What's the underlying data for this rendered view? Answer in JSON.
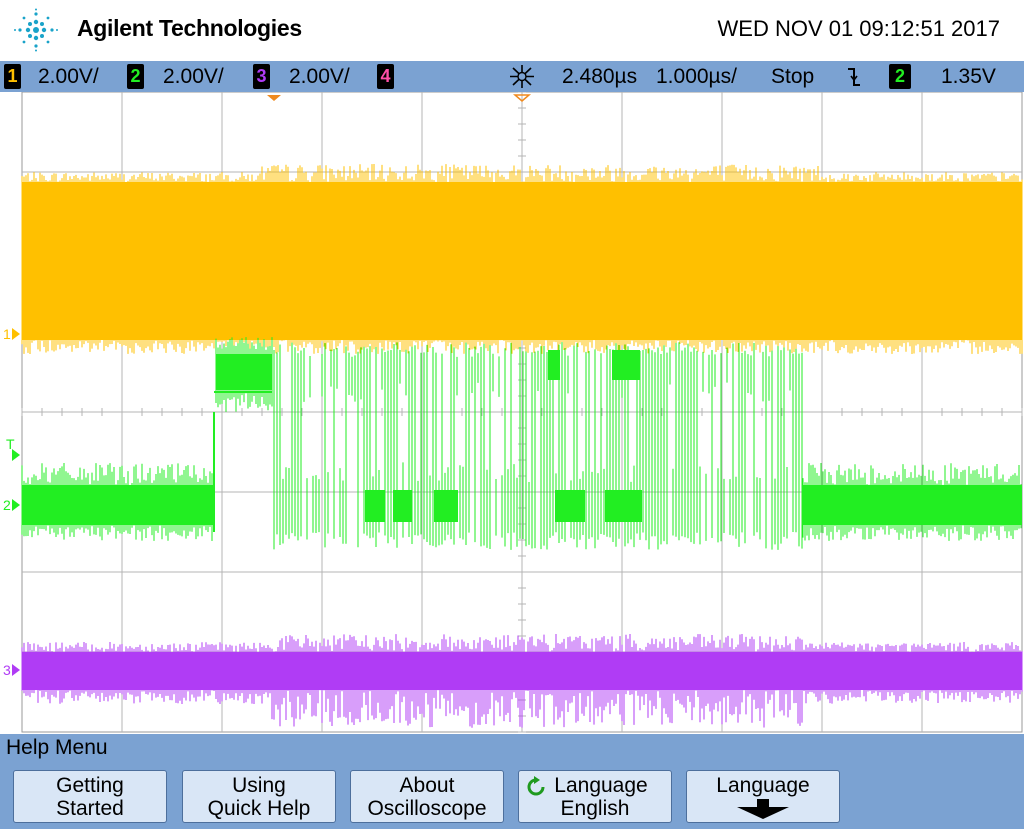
{
  "header": {
    "brand": "Agilent Technologies",
    "datetime": "WED NOV 01 09:12:51 2017",
    "logo_icon": "agilent-spark-icon"
  },
  "status": {
    "channels": [
      {
        "num": "1",
        "scale": "2.00V/",
        "color": "#ffc000"
      },
      {
        "num": "2",
        "scale": "2.00V/",
        "color": "#22ee22"
      },
      {
        "num": "3",
        "scale": "2.00V/",
        "color": "#b03cf5"
      },
      {
        "num": "4",
        "scale": "",
        "color": "#ff4fa8"
      }
    ],
    "trigger_icon": "trigger-center-icon",
    "time_delay": "2.480µs",
    "time_scale": "1.000µs/",
    "run_state": "Stop",
    "trigger_slope_icon": "falling-edge-icon",
    "trigger_source": "2",
    "trigger_level": "1.35V"
  },
  "markers": {
    "ch1": "1",
    "trig": "T",
    "ch2": "2",
    "ch3": "3"
  },
  "menu": {
    "title": "Help Menu",
    "softkeys": [
      {
        "line1": "Getting",
        "line2": "Started"
      },
      {
        "line1": "Using",
        "line2": "Quick Help"
      },
      {
        "line1": "About",
        "line2": "Oscilloscope"
      },
      {
        "line1": "Language",
        "line2": "English",
        "icon": "cycle-arrow-icon"
      },
      {
        "line1": "Language",
        "line2": "",
        "icon": "down-arrow-icon"
      }
    ]
  },
  "colors": {
    "bar": "#7ba2d2",
    "grid": "#a8a8a8",
    "ch1": "#ffc000",
    "ch2": "#22ee22",
    "ch3": "#b03cf5",
    "ch4": "#ff4fa8",
    "trigger_marker": "#f08a1e"
  }
}
